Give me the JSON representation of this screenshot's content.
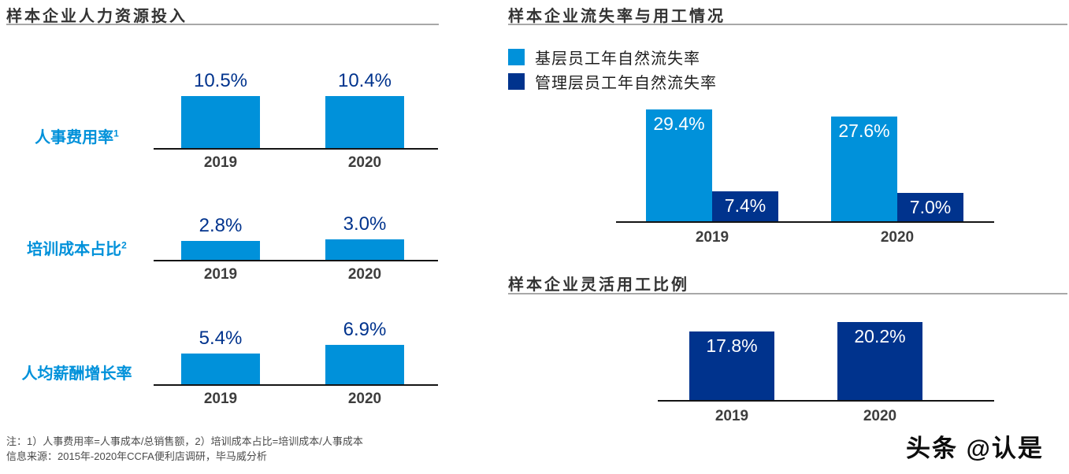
{
  "colors": {
    "light_blue": "#0091DA",
    "dark_blue": "#00338D",
    "title_text": "#333333",
    "year_label": "#3D3D3D",
    "axis_line": "#141414",
    "title_rule": "#A8A8A8",
    "footnote_text": "#4A4A4A"
  },
  "chart_data": [
    {
      "type": "bar",
      "title": "样本企业人力资源投入",
      "unit": "%",
      "legend_position": "none",
      "subcharts": [
        {
          "label": "人事费用率",
          "footnote_ref": "1",
          "categories": [
            "2019",
            "2020"
          ],
          "values": [
            10.5,
            10.4
          ],
          "values_fmt": [
            "10.5%",
            "10.4%"
          ]
        },
        {
          "label": "培训成本占比",
          "footnote_ref": "2",
          "categories": [
            "2019",
            "2020"
          ],
          "values": [
            2.8,
            3.0
          ],
          "values_fmt": [
            "2.8%",
            "3.0%"
          ]
        },
        {
          "label": "人均薪酬增长率",
          "footnote_ref": "",
          "categories": [
            "2019",
            "2020"
          ],
          "values": [
            5.4,
            6.9
          ],
          "values_fmt": [
            "5.4%",
            "6.9%"
          ]
        }
      ]
    },
    {
      "type": "bar",
      "title": "样本企业流失率与用工情况",
      "unit": "%",
      "categories": [
        "2019",
        "2020"
      ],
      "legend_position": "top-left",
      "value_label_style": "white-inside",
      "series": [
        {
          "name": "基层员工年自然流失率",
          "color": "#0091DA",
          "values": [
            29.4,
            27.6
          ],
          "values_fmt": [
            "29.4%",
            "27.6%"
          ]
        },
        {
          "name": "管理层员工年自然流失率",
          "color": "#00338D",
          "values": [
            7.4,
            7.0
          ],
          "values_fmt": [
            "7.4%",
            "7.0%"
          ]
        }
      ]
    },
    {
      "type": "bar",
      "title": "样本企业灵活用工比例",
      "unit": "%",
      "categories": [
        "2019",
        "2020"
      ],
      "values": [
        17.8,
        20.2
      ],
      "values_fmt": [
        "17.8%",
        "20.2%"
      ],
      "bar_color": "#00338D",
      "value_label_style": "white-inside"
    }
  ],
  "footnotes": {
    "note": "注：1）人事费用率=人事成本/总销售额，2）培训成本占比=培训成本/人事成本",
    "source": "信息来源：2015年-2020年CCFA便利店调研，毕马威分析"
  },
  "watermark": "头条 @认是"
}
